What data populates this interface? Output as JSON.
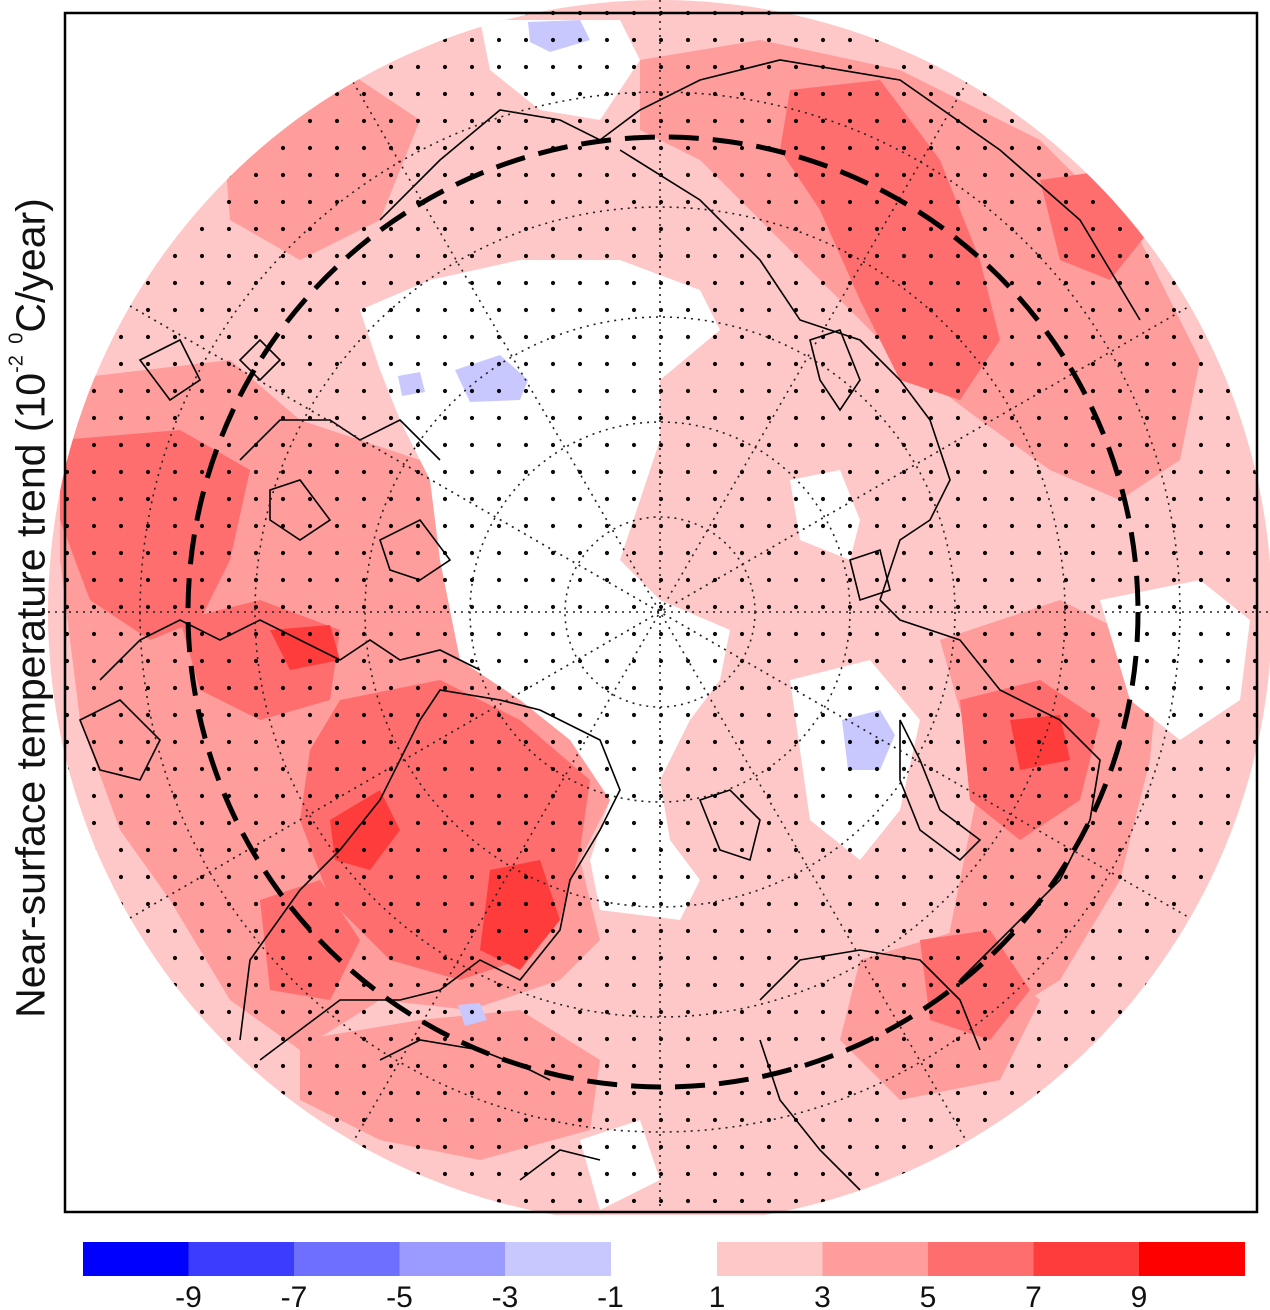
{
  "ylabel": {
    "prefix": "Near-surface temperature trend (10",
    "exp1": "-2",
    "exp2": "0",
    "suffix": "C/year)"
  },
  "colorbar": {
    "negative": [
      {
        "label": "-9",
        "color": "#0000ff"
      },
      {
        "label": "-7",
        "color": "#3c3cff"
      },
      {
        "label": "-5",
        "color": "#6e6eff"
      },
      {
        "label": "-3",
        "color": "#9a9aff"
      },
      {
        "label": "-1",
        "color": "#c8c8ff"
      }
    ],
    "positive": [
      {
        "label": "1",
        "color": "#ffc8c8"
      },
      {
        "label": "3",
        "color": "#ff9c9c"
      },
      {
        "label": "5",
        "color": "#ff6e6e"
      },
      {
        "label": "7",
        "color": "#ff3c3c"
      },
      {
        "label": "9",
        "color": "#ff0000"
      }
    ]
  },
  "map": {
    "projection": "north polar stereographic",
    "stippling": "significant trend",
    "dashed_circle": true
  }
}
